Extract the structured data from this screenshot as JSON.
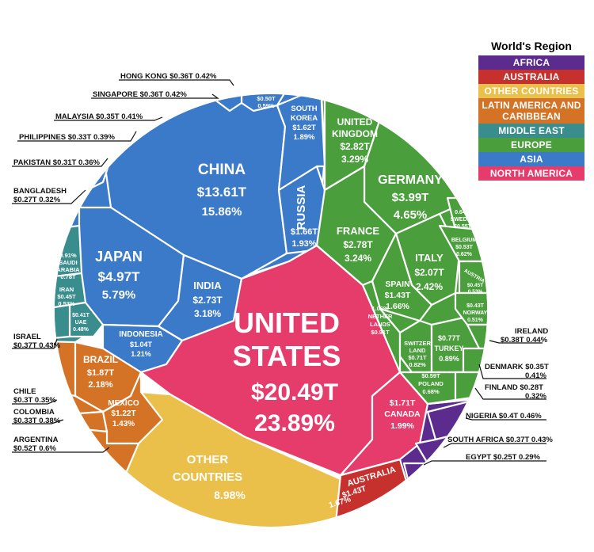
{
  "legend": {
    "title": "World's Region",
    "items": [
      {
        "label": "AFRICA",
        "color": "#5b2c8e"
      },
      {
        "label": "AUSTRALIA",
        "color": "#c6302d"
      },
      {
        "label": "OTHER COUNTRIES",
        "color": "#eac04a"
      },
      {
        "label": "LATIN AMERICA AND CARIBBEAN",
        "color": "#d47326"
      },
      {
        "label": "MIDDLE EAST",
        "color": "#3a8d8d"
      },
      {
        "label": "EUROPE",
        "color": "#4a9f3c"
      },
      {
        "label": "ASIA",
        "color": "#3b79c9"
      },
      {
        "label": "NORTH AMERICA",
        "color": "#e63c6c"
      }
    ]
  },
  "chart_data": {
    "type": "voronoi-treemap",
    "unit": "USD trillions (GDP) and percent of world GDP",
    "cells": [
      {
        "name": "UNITED STATES",
        "region": "NORTH AMERICA",
        "value": "$20.49T",
        "pct": "23.89%"
      },
      {
        "name": "CANADA",
        "region": "NORTH AMERICA",
        "value": "$1.71T",
        "pct": "1.99%"
      },
      {
        "name": "CHINA",
        "region": "ASIA",
        "value": "$13.61T",
        "pct": "15.86%"
      },
      {
        "name": "JAPAN",
        "region": "ASIA",
        "value": "$4.97T",
        "pct": "5.79%"
      },
      {
        "name": "INDIA",
        "region": "ASIA",
        "value": "$2.73T",
        "pct": "3.18%"
      },
      {
        "name": "RUSSIA",
        "region": "ASIA",
        "value": "$1.66T",
        "pct": "1.93%"
      },
      {
        "name": "SOUTH KOREA",
        "region": "ASIA",
        "value": "$1.62T",
        "pct": "1.89%"
      },
      {
        "name": "INDONESIA",
        "region": "ASIA",
        "value": "$1.04T",
        "pct": "1.21%"
      },
      {
        "name": "THAILAND",
        "region": "ASIA",
        "value": "$0.50T",
        "pct": "0.59%"
      },
      {
        "name": "HONG KONG",
        "region": "ASIA",
        "value": "$0.36T",
        "pct": "0.42%"
      },
      {
        "name": "SINGAPORE",
        "region": "ASIA",
        "value": "$0.36T",
        "pct": "0.42%"
      },
      {
        "name": "MALAYSIA",
        "region": "ASIA",
        "value": "$0.35T",
        "pct": "0.41%"
      },
      {
        "name": "PHILIPPINES",
        "region": "ASIA",
        "value": "$0.33T",
        "pct": "0.39%"
      },
      {
        "name": "PAKISTAN",
        "region": "ASIA",
        "value": "$0.31T",
        "pct": "0.36%"
      },
      {
        "name": "BANGLADESH",
        "region": "ASIA",
        "value": "$0.27T",
        "pct": "0.32%"
      },
      {
        "name": "UNITED KINGDOM",
        "region": "EUROPE",
        "value": "$2.82T",
        "pct": "3.29%"
      },
      {
        "name": "GERMANY",
        "region": "EUROPE",
        "value": "$3.99T",
        "pct": "4.65%"
      },
      {
        "name": "FRANCE",
        "region": "EUROPE",
        "value": "$2.78T",
        "pct": "3.24%"
      },
      {
        "name": "ITALY",
        "region": "EUROPE",
        "value": "$2.07T",
        "pct": "2.42%"
      },
      {
        "name": "SPAIN",
        "region": "EUROPE",
        "value": "$1.43T",
        "pct": "1.66%"
      },
      {
        "name": "NETHERLANDS",
        "region": "EUROPE",
        "value": "$0.91T",
        "pct": "1.06%"
      },
      {
        "name": "SWITZERLAND",
        "region": "EUROPE",
        "value": "$0.71T",
        "pct": "0.82%"
      },
      {
        "name": "TURKEY",
        "region": "EUROPE",
        "value": "$0.77T",
        "pct": "0.89%"
      },
      {
        "name": "POLAND",
        "region": "EUROPE",
        "value": "$0.59T",
        "pct": "0.68%"
      },
      {
        "name": "SWEDEN",
        "region": "EUROPE",
        "value": "$0.55T",
        "pct": "0.64%"
      },
      {
        "name": "BELGIUM",
        "region": "EUROPE",
        "value": "$0.53T",
        "pct": "0.62%"
      },
      {
        "name": "AUSTRIA",
        "region": "EUROPE",
        "value": "$0.45T",
        "pct": "0.53%"
      },
      {
        "name": "NORWAY",
        "region": "EUROPE",
        "value": "$0.43T",
        "pct": "0.51%"
      },
      {
        "name": "IRELAND",
        "region": "EUROPE",
        "value": "$0.38T",
        "pct": "0.44%"
      },
      {
        "name": "DENMARK",
        "region": "EUROPE",
        "value": "$0.35T",
        "pct": "0.41%"
      },
      {
        "name": "FINLAND",
        "region": "EUROPE",
        "value": "$0.28T",
        "pct": "0.32%"
      },
      {
        "name": "SAUDI ARABIA",
        "region": "MIDDLE EAST",
        "value": "$0.78T",
        "pct": "0.91%"
      },
      {
        "name": "IRAN",
        "region": "MIDDLE EAST",
        "value": "$0.45T",
        "pct": "0.53%"
      },
      {
        "name": "UAE",
        "region": "MIDDLE EAST",
        "value": "$0.41T",
        "pct": "0.48%"
      },
      {
        "name": "ISRAEL",
        "region": "MIDDLE EAST",
        "value": "$0.37T",
        "pct": "0.43%"
      },
      {
        "name": "BRAZIL",
        "region": "LATIN AMERICA AND CARIBBEAN",
        "value": "$1.87T",
        "pct": "2.18%"
      },
      {
        "name": "MEXICO",
        "region": "LATIN AMERICA AND CARIBBEAN",
        "value": "$1.22T",
        "pct": "1.43%"
      },
      {
        "name": "ARGENTINA",
        "region": "LATIN AMERICA AND CARIBBEAN",
        "value": "$0.52T",
        "pct": "0.6%"
      },
      {
        "name": "CHILE",
        "region": "LATIN AMERICA AND CARIBBEAN",
        "value": "$0.3T",
        "pct": "0.35%"
      },
      {
        "name": "COLOMBIA",
        "region": "LATIN AMERICA AND CARIBBEAN",
        "value": "$0.33T",
        "pct": "0.38%"
      },
      {
        "name": "AUSTRALIA",
        "region": "AUSTRALIA",
        "value": "$1.43T",
        "pct": "1.67%"
      },
      {
        "name": "NIGERIA",
        "region": "AFRICA",
        "value": "$0.4T",
        "pct": "0.46%"
      },
      {
        "name": "SOUTH AFRICA",
        "region": "AFRICA",
        "value": "$0.37T",
        "pct": "0.43%"
      },
      {
        "name": "EGYPT",
        "region": "AFRICA",
        "value": "$0.25T",
        "pct": "0.29%"
      },
      {
        "name": "OTHER COUNTRIES",
        "region": "OTHER COUNTRIES",
        "pct": "8.98%"
      }
    ],
    "inside_labels": {
      "united_states": {
        "l1": "UNITED",
        "l2": "STATES",
        "l3": "$20.49T",
        "l4": "23.89%"
      },
      "china": {
        "l1": "CHINA",
        "l2": "$13.61T",
        "l3": "15.86%"
      },
      "japan": {
        "l1": "JAPAN",
        "l2": "$4.97T",
        "l3": "5.79%"
      },
      "germany": {
        "l1": "GERMANY",
        "l2": "$3.99T",
        "l3": "4.65%"
      },
      "uk": {
        "l1": "UNITED",
        "l2": "KINGDOM",
        "l3": "$2.82T",
        "l4": "3.29%"
      },
      "france": {
        "l1": "FRANCE",
        "l2": "$2.78T",
        "l3": "3.24%"
      },
      "india": {
        "l1": "INDIA",
        "l2": "$2.73T",
        "l3": "3.18%"
      },
      "italy": {
        "l1": "ITALY",
        "l2": "$2.07T",
        "l3": "2.42%"
      },
      "russia": {
        "l1": "RUSSIA",
        "l2": "$1.66T",
        "l3": "1.93%"
      },
      "south_korea": {
        "l1": "SOUTH",
        "l2": "KOREA",
        "l3": "$1.62T",
        "l4": "1.89%"
      },
      "spain": {
        "l1": "SPAIN",
        "l2": "$1.43T",
        "l3": "1.66%"
      },
      "brazil": {
        "l1": "BRAZIL",
        "l2": "$1.87T",
        "l3": "2.18%"
      },
      "mexico": {
        "l1": "MEXICO",
        "l2": "$1.22T",
        "l3": "1.43%"
      },
      "canada": {
        "l1": "$1.71T",
        "l2": "CANADA",
        "l3": "1.99%"
      },
      "indonesia": {
        "l1": "INDONESIA",
        "l2": "$1.04T",
        "l3": "1.21%"
      },
      "australia": {
        "l1": "AUSTRALIA",
        "l2": "$1.43T",
        "l3": "1.67%"
      },
      "other": {
        "l1": "OTHER",
        "l2": "COUNTRIES",
        "l3": "8.98%"
      },
      "thailand": {
        "l1": "THAILAND",
        "l2": "$0.50T",
        "l3": "0.59%"
      },
      "saudi": {
        "l1": "0.91%",
        "l2": "SAUDI",
        "l3": "ARABIA",
        "l4": "0.78T"
      },
      "iran": {
        "l1": "IRAN",
        "l2": "$0.45T",
        "l3": "0.53%"
      },
      "uae": {
        "l1": "$0.41T",
        "l2": "UAE",
        "l3": "0.48%"
      },
      "netherlands": {
        "l1": "1.06%",
        "l2": "NETHER",
        "l3": "LANDS",
        "l4": "$0.91T"
      },
      "switzerland": {
        "l1": "SWITZER",
        "l2": "LAND",
        "l3": "$0.71T",
        "l4": "0.82%"
      },
      "turkey": {
        "l1": "$0.77T",
        "l2": "TURKEY",
        "l3": "0.89%"
      },
      "poland": {
        "l1": "$0.59T",
        "l2": "POLAND",
        "l3": "0.68%"
      },
      "sweden": {
        "l1": "0.64%",
        "l2": "SWEDEN",
        "l3": "$0.55T"
      },
      "belgium": {
        "l1": "BELGIUM",
        "l2": "$0.53T",
        "l3": "0.62%"
      },
      "austria": {
        "l1": "AUSTRIA",
        "l2": "$0.45T",
        "l3": "0.53%"
      },
      "norway": {
        "l1": "$0.43T",
        "l2": "NORWAY",
        "l3": "0.51%"
      }
    },
    "callouts": {
      "hong_kong": "HONG KONG  $0.36T  0.42%",
      "singapore": "SINGAPORE $0.36T  0.42%",
      "malaysia": "MALAYSIA  $0.35T  0.41%",
      "philippines": "PHILIPPINES $0.33T  0.39%",
      "pakistan": "PAKISTAN $0.31T 0.36%",
      "bangladesh_1": "BANGLADESH",
      "bangladesh_2": "$0.27T  0.32%",
      "israel_1": "ISRAEL",
      "israel_2": "$0.37T  0.43%",
      "chile_1": "CHILE",
      "chile_2": "$0.3T  0.35%",
      "colombia_1": "COLOMBIA",
      "colombia_2": "$0.33T  0.38%",
      "argentina_1": "ARGENTINA",
      "argentina_2": "$0.52T  0.6%",
      "ireland_1": "IRELAND",
      "ireland_2": "$0.38T  0.44%",
      "denmark_1": "DENMARK  $0.35T",
      "denmark_2": "0.41%",
      "finland_1": "FINLAND  $0.28T",
      "finland_2": "0.32%",
      "nigeria": "NIGERIA  $0.4T  0.46%",
      "south_africa": "SOUTH AFRICA  $0.37T  0.43%",
      "egypt": "EGYPT  $0.25T  0.29%"
    }
  }
}
